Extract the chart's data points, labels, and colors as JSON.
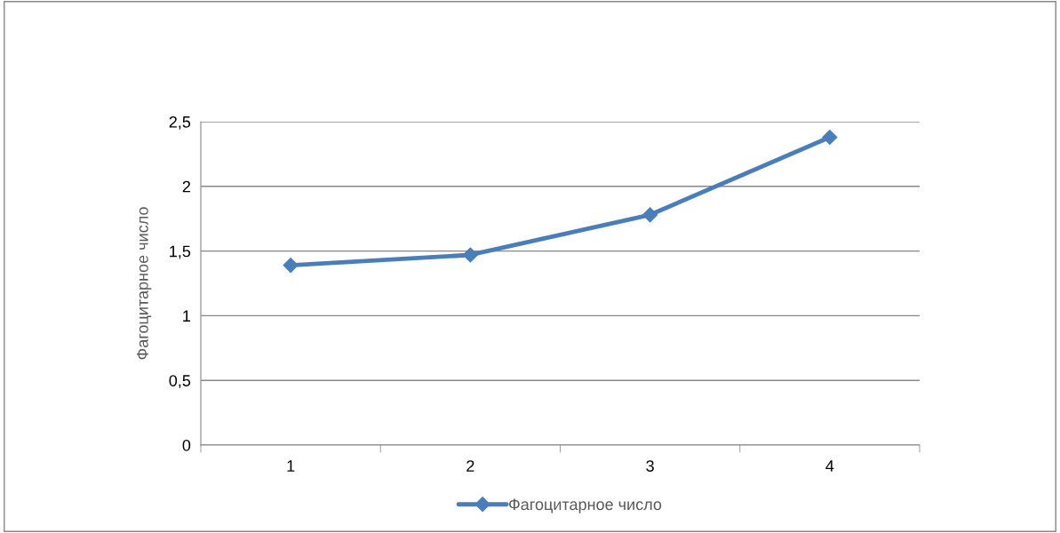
{
  "chart_data": {
    "type": "line",
    "ylabel": "Фагоцитарное число",
    "categories": [
      "1",
      "2",
      "3",
      "4"
    ],
    "series": [
      {
        "name": "Фагоцитарное число",
        "color": "#4a7ebb",
        "values": [
          1.39,
          1.47,
          1.78,
          2.38
        ]
      }
    ],
    "ylim": [
      0,
      2.5
    ],
    "yticks": [
      0,
      {
        "value": 0.5,
        "label": "0,5"
      },
      1,
      {
        "value": 1.5,
        "label": "1,5"
      },
      2,
      {
        "value": 2.5,
        "label": "2,5"
      }
    ],
    "grid": "y",
    "legend": "bottom",
    "marker": "diamond",
    "line_style": "solid"
  }
}
